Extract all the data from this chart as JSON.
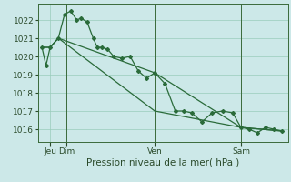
{
  "background_color": "#cce8e8",
  "grid_color": "#99ccbb",
  "line_color": "#2a6b3a",
  "marker_color": "#2a6b3a",
  "ylim": [
    1015.3,
    1022.9
  ],
  "y_ticks": [
    1016,
    1017,
    1018,
    1019,
    1020,
    1021,
    1022
  ],
  "xlabel": "Pression niveau de la mer( hPa )",
  "xlabel_fontsize": 7.5,
  "series1": {
    "x": [
      0,
      2,
      4,
      8,
      11,
      14,
      17,
      19,
      22,
      25,
      27,
      29,
      32,
      35,
      39,
      43,
      47,
      51,
      55,
      60,
      65,
      69,
      73,
      78,
      83,
      88,
      93,
      97,
      101,
      105,
      109,
      113,
      117
    ],
    "y": [
      1020.5,
      1019.5,
      1020.5,
      1021.0,
      1022.3,
      1022.5,
      1022.0,
      1022.1,
      1021.9,
      1021.0,
      1020.5,
      1020.5,
      1020.4,
      1020.0,
      1019.9,
      1020.0,
      1019.2,
      1018.8,
      1019.1,
      1018.5,
      1017.0,
      1017.0,
      1016.9,
      1016.4,
      1016.9,
      1017.0,
      1016.9,
      1016.1,
      1016.0,
      1015.8,
      1016.1,
      1016.0,
      1015.9
    ]
  },
  "series2": {
    "x": [
      0,
      4,
      8,
      55,
      97,
      117
    ],
    "y": [
      1020.5,
      1020.5,
      1021.0,
      1019.1,
      1016.1,
      1015.9
    ]
  },
  "series3": {
    "x": [
      0,
      4,
      8,
      55,
      97,
      117
    ],
    "y": [
      1020.5,
      1020.5,
      1021.0,
      1017.0,
      1016.1,
      1015.9
    ]
  },
  "xlim": [
    -2,
    120
  ],
  "vlines_x": [
    12,
    55,
    97
  ],
  "x_tick_positions": [
    4,
    12,
    55,
    97
  ],
  "x_tick_labels": [
    "Jeu",
    "Dim",
    "Ven",
    "Sam"
  ],
  "tick_fontsize": 6.5,
  "marker_size": 2.0,
  "line_width": 0.9
}
